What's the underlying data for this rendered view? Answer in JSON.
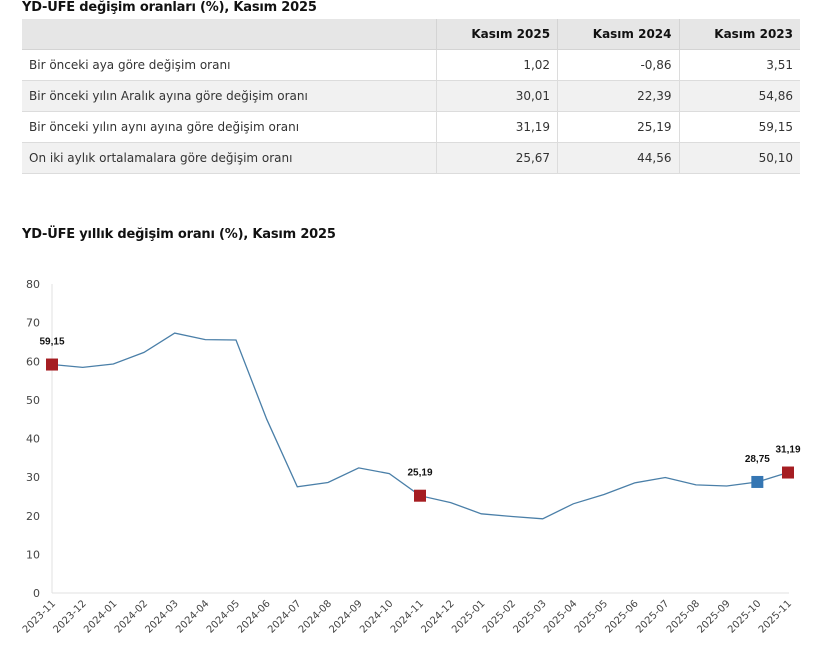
{
  "table": {
    "title": "YD-ÜFE değişim oranları (%), Kasım 2025",
    "columns": [
      "",
      "Kasım 2025",
      "Kasım 2024",
      "Kasım 2023"
    ],
    "rows": [
      {
        "label": "Bir önceki aya göre değişim oranı",
        "values": [
          "1,02",
          "-0,86",
          "3,51"
        ]
      },
      {
        "label": "Bir önceki yılın Aralık ayına göre değişim oranı",
        "values": [
          "30,01",
          "22,39",
          "54,86"
        ]
      },
      {
        "label": "Bir önceki yılın aynı ayına göre değişim oranı",
        "values": [
          "31,19",
          "25,19",
          "59,15"
        ]
      },
      {
        "label": "On iki aylık ortalamalara göre değişim oranı",
        "values": [
          "25,67",
          "44,56",
          "50,10"
        ]
      }
    ]
  },
  "chart_data": {
    "type": "line",
    "title": "YD-ÜFE yıllık değişim oranı (%), Kasım 2025",
    "xlabel": "",
    "ylabel": "",
    "ylim": [
      0,
      80
    ],
    "yticks": [
      0,
      10,
      20,
      30,
      40,
      50,
      60,
      70,
      80
    ],
    "grid": false,
    "legend": null,
    "categories": [
      "2023-11",
      "2023-12",
      "2024-01",
      "2024-02",
      "2024-03",
      "2024-04",
      "2024-05",
      "2024-06",
      "2024-07",
      "2024-08",
      "2024-09",
      "2024-10",
      "2024-11",
      "2024-12",
      "2025-01",
      "2025-02",
      "2025-03",
      "2025-04",
      "2025-05",
      "2025-06",
      "2025-07",
      "2025-08",
      "2025-09",
      "2025-10",
      "2025-11"
    ],
    "series": [
      {
        "name": "YD-ÜFE yıllık değişim oranı (%)",
        "color": "#4a7fa8",
        "values": [
          59.15,
          58.4,
          59.3,
          62.3,
          67.3,
          65.6,
          65.5,
          45.0,
          27.5,
          28.6,
          32.4,
          30.9,
          25.19,
          23.4,
          20.5,
          19.8,
          19.2,
          23.1,
          25.5,
          28.5,
          29.9,
          28.0,
          27.7,
          28.75,
          31.19
        ]
      }
    ],
    "annotations": [
      {
        "category": "2023-11",
        "value": 59.15,
        "label": "59,15",
        "marker_color": "#a51d22"
      },
      {
        "category": "2024-11",
        "value": 25.19,
        "label": "25,19",
        "marker_color": "#a51d22"
      },
      {
        "category": "2025-10",
        "value": 28.75,
        "label": "28,75",
        "marker_color": "#3576b3"
      },
      {
        "category": "2025-11",
        "value": 31.19,
        "label": "31,19",
        "marker_color": "#a51d22"
      }
    ]
  }
}
